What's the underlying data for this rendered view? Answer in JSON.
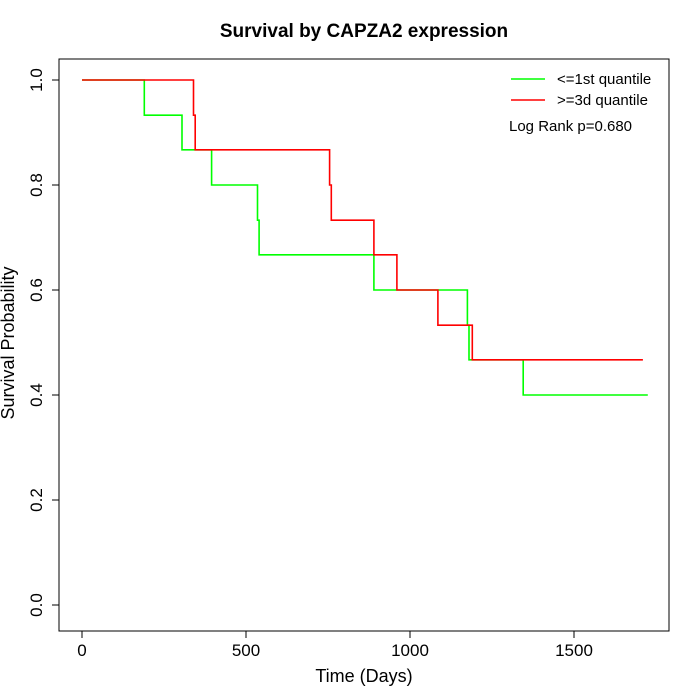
{
  "chart_data": {
    "type": "line",
    "title": "Survival by CAPZA2 expression",
    "xlabel": "Time (Days)",
    "ylabel": "Survival Probability",
    "xlim": [
      0,
      1780
    ],
    "ylim": [
      0,
      1.0
    ],
    "x_ticks": [
      "0",
      "500",
      "1000",
      "1500"
    ],
    "x_tick_values": [
      0,
      500,
      1000,
      1500
    ],
    "y_ticks": [
      "0.0",
      "0.2",
      "0.4",
      "0.6",
      "0.8",
      "1.0"
    ],
    "y_tick_values": [
      0.0,
      0.2,
      0.4,
      0.6,
      0.8,
      1.0
    ],
    "grid": false,
    "legend_position": "top-right",
    "series": [
      {
        "name": "<=1st quantile",
        "color": "#00ff00",
        "step_points": [
          [
            0,
            1.0
          ],
          [
            190,
            1.0
          ],
          [
            190,
            0.933
          ],
          [
            305,
            0.933
          ],
          [
            305,
            0.867
          ],
          [
            395,
            0.867
          ],
          [
            395,
            0.8
          ],
          [
            535,
            0.8
          ],
          [
            535,
            0.733
          ],
          [
            540,
            0.733
          ],
          [
            540,
            0.667
          ],
          [
            890,
            0.667
          ],
          [
            890,
            0.6
          ],
          [
            1175,
            0.6
          ],
          [
            1175,
            0.533
          ],
          [
            1180,
            0.533
          ],
          [
            1180,
            0.467
          ],
          [
            1345,
            0.467
          ],
          [
            1345,
            0.4
          ],
          [
            1725,
            0.4
          ]
        ]
      },
      {
        "name": ">=3d quantile",
        "color": "#ff0000",
        "step_points": [
          [
            0,
            1.0
          ],
          [
            340,
            1.0
          ],
          [
            340,
            0.933
          ],
          [
            345,
            0.933
          ],
          [
            345,
            0.867
          ],
          [
            755,
            0.867
          ],
          [
            755,
            0.8
          ],
          [
            760,
            0.8
          ],
          [
            760,
            0.733
          ],
          [
            890,
            0.733
          ],
          [
            890,
            0.667
          ],
          [
            960,
            0.667
          ],
          [
            960,
            0.6
          ],
          [
            1085,
            0.6
          ],
          [
            1085,
            0.533
          ],
          [
            1190,
            0.533
          ],
          [
            1190,
            0.467
          ],
          [
            1710,
            0.467
          ]
        ]
      }
    ],
    "annotation": "Log Rank p=0.680"
  }
}
